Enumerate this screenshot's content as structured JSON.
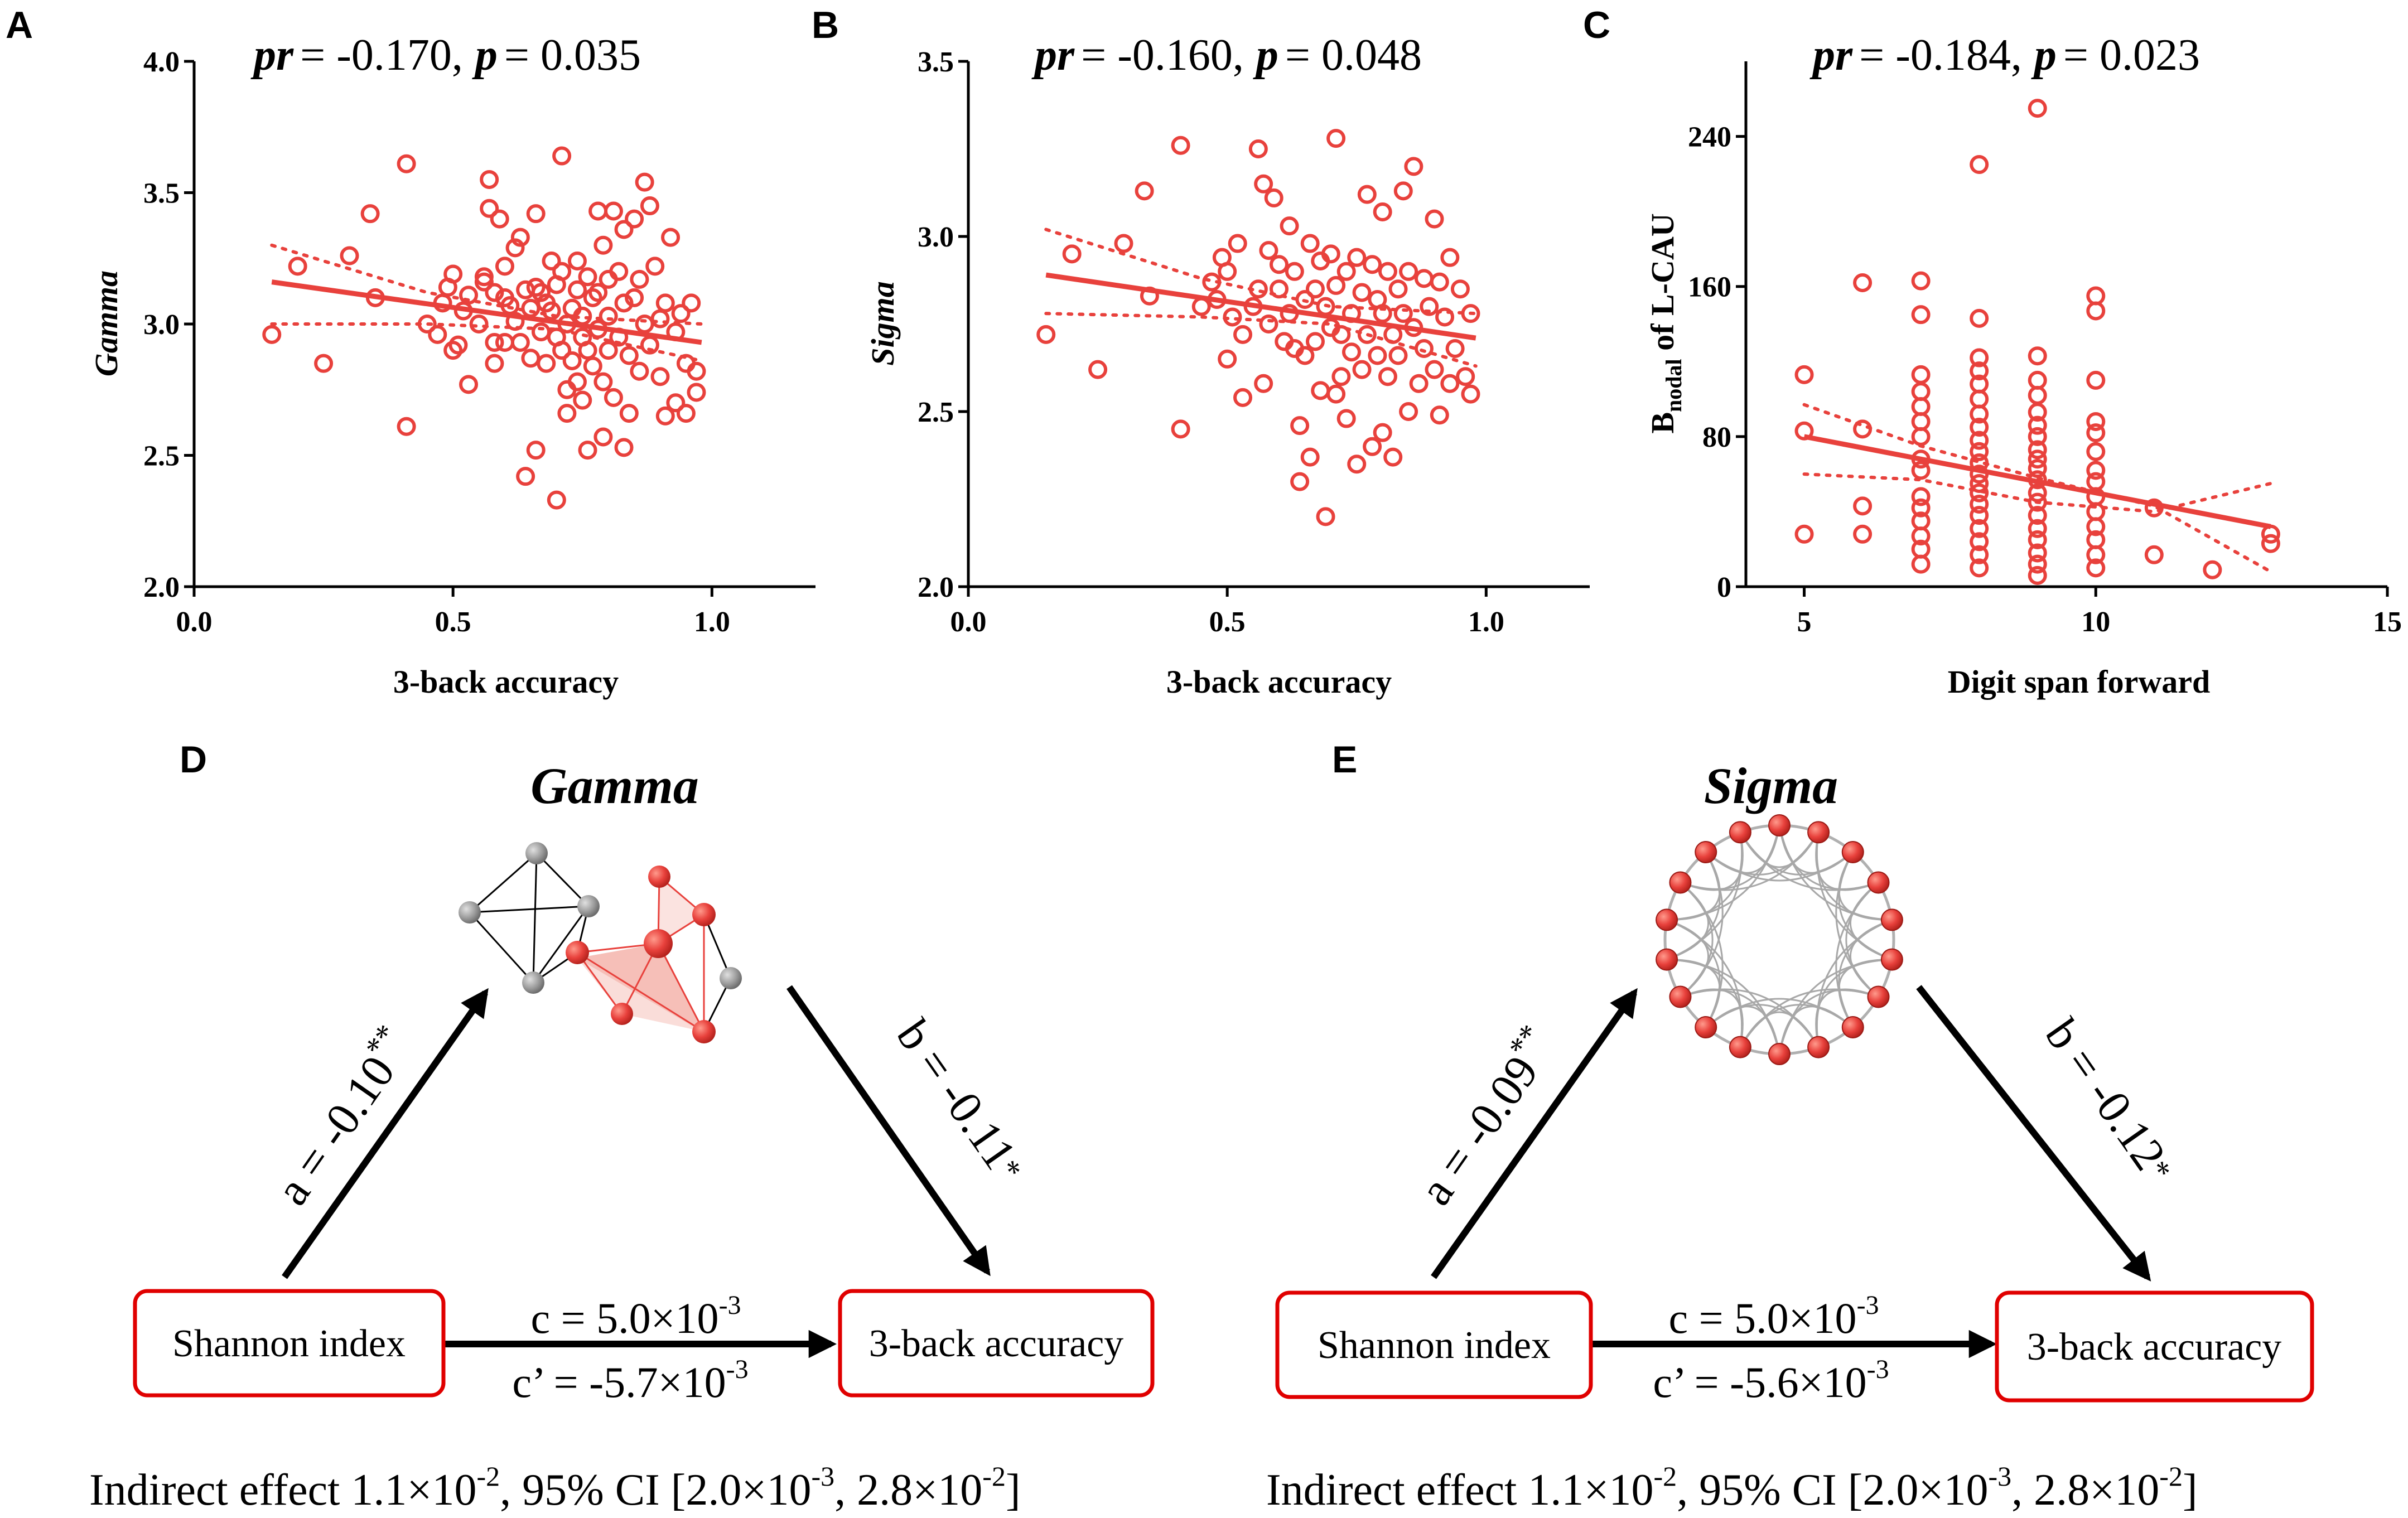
{
  "colors": {
    "accent": "#e8413c",
    "axis": "#000000",
    "box": "#e00000",
    "gray_node": "#9a9a9a"
  },
  "chart_data": [
    {
      "panel": "A",
      "type": "scatter",
      "stat": {
        "pr_label": "pr",
        "pr_value": "= -0.170,",
        "p_label": "p",
        "p_value": "= 0.035"
      },
      "xlabel": "3-back accuracy",
      "ylabel": "Gamma",
      "xlim": [
        0.0,
        1.2
      ],
      "ylim": [
        2.0,
        4.0
      ],
      "xticks": [
        "0.0",
        "0.5",
        "1.0"
      ],
      "xtick_values": [
        0.0,
        0.5,
        1.0
      ],
      "yticks": [
        "2.0",
        "2.5",
        "3.0",
        "3.5",
        "4.0"
      ],
      "ytick_values": [
        2.0,
        2.5,
        3.0,
        3.5,
        4.0
      ],
      "fit": {
        "x": [
          0.15,
          0.98
        ],
        "y": [
          3.16,
          2.93
        ]
      },
      "ci_upper": {
        "x": [
          0.15,
          0.45,
          0.7,
          0.98
        ],
        "y": [
          3.3,
          3.12,
          3.03,
          3.0
        ]
      },
      "ci_lower": {
        "x": [
          0.15,
          0.45,
          0.7,
          0.98
        ],
        "y": [
          3.0,
          3.0,
          2.98,
          2.86
        ]
      },
      "points": [
        [
          0.15,
          2.96
        ],
        [
          0.2,
          3.22
        ],
        [
          0.25,
          2.85
        ],
        [
          0.3,
          3.26
        ],
        [
          0.34,
          3.42
        ],
        [
          0.35,
          3.1
        ],
        [
          0.41,
          3.61
        ],
        [
          0.41,
          2.61
        ],
        [
          0.45,
          3.0
        ],
        [
          0.47,
          2.96
        ],
        [
          0.48,
          3.08
        ],
        [
          0.49,
          3.14
        ],
        [
          0.5,
          3.19
        ],
        [
          0.5,
          2.9
        ],
        [
          0.51,
          2.92
        ],
        [
          0.52,
          3.05
        ],
        [
          0.53,
          3.11
        ],
        [
          0.53,
          2.77
        ],
        [
          0.55,
          3.0
        ],
        [
          0.56,
          3.18
        ],
        [
          0.56,
          3.16
        ],
        [
          0.57,
          3.55
        ],
        [
          0.57,
          3.44
        ],
        [
          0.58,
          3.12
        ],
        [
          0.58,
          2.93
        ],
        [
          0.58,
          2.85
        ],
        [
          0.59,
          3.4
        ],
        [
          0.6,
          3.22
        ],
        [
          0.6,
          3.1
        ],
        [
          0.6,
          2.93
        ],
        [
          0.61,
          3.07
        ],
        [
          0.62,
          3.29
        ],
        [
          0.62,
          3.01
        ],
        [
          0.63,
          3.33
        ],
        [
          0.63,
          2.93
        ],
        [
          0.64,
          3.13
        ],
        [
          0.64,
          2.42
        ],
        [
          0.65,
          3.06
        ],
        [
          0.65,
          2.87
        ],
        [
          0.66,
          3.42
        ],
        [
          0.66,
          3.14
        ],
        [
          0.66,
          2.52
        ],
        [
          0.67,
          3.12
        ],
        [
          0.67,
          2.97
        ],
        [
          0.68,
          3.08
        ],
        [
          0.68,
          2.85
        ],
        [
          0.69,
          3.24
        ],
        [
          0.69,
          3.05
        ],
        [
          0.7,
          3.15
        ],
        [
          0.7,
          2.95
        ],
        [
          0.7,
          2.33
        ],
        [
          0.71,
          3.64
        ],
        [
          0.71,
          3.2
        ],
        [
          0.71,
          2.9
        ],
        [
          0.72,
          3.0
        ],
        [
          0.72,
          2.75
        ],
        [
          0.72,
          2.66
        ],
        [
          0.73,
          3.06
        ],
        [
          0.73,
          2.86
        ],
        [
          0.74,
          3.24
        ],
        [
          0.74,
          3.13
        ],
        [
          0.74,
          2.78
        ],
        [
          0.75,
          3.03
        ],
        [
          0.75,
          2.95
        ],
        [
          0.75,
          2.71
        ],
        [
          0.76,
          3.18
        ],
        [
          0.76,
          2.9
        ],
        [
          0.76,
          2.52
        ],
        [
          0.77,
          3.1
        ],
        [
          0.77,
          2.84
        ],
        [
          0.78,
          3.43
        ],
        [
          0.78,
          3.12
        ],
        [
          0.78,
          2.98
        ],
        [
          0.79,
          3.3
        ],
        [
          0.79,
          2.78
        ],
        [
          0.79,
          2.57
        ],
        [
          0.8,
          3.17
        ],
        [
          0.8,
          3.03
        ],
        [
          0.8,
          2.9
        ],
        [
          0.81,
          3.43
        ],
        [
          0.81,
          2.72
        ],
        [
          0.82,
          3.2
        ],
        [
          0.82,
          2.95
        ],
        [
          0.83,
          3.36
        ],
        [
          0.83,
          3.08
        ],
        [
          0.83,
          2.53
        ],
        [
          0.84,
          2.88
        ],
        [
          0.84,
          2.66
        ],
        [
          0.85,
          3.4
        ],
        [
          0.85,
          3.1
        ],
        [
          0.86,
          3.17
        ],
        [
          0.86,
          2.82
        ],
        [
          0.87,
          3.54
        ],
        [
          0.87,
          3.0
        ],
        [
          0.88,
          3.45
        ],
        [
          0.88,
          2.92
        ],
        [
          0.89,
          3.22
        ],
        [
          0.9,
          3.02
        ],
        [
          0.9,
          2.8
        ],
        [
          0.91,
          3.08
        ],
        [
          0.91,
          2.65
        ],
        [
          0.92,
          3.33
        ],
        [
          0.93,
          2.97
        ],
        [
          0.93,
          2.7
        ],
        [
          0.94,
          3.04
        ],
        [
          0.95,
          2.85
        ],
        [
          0.95,
          2.66
        ],
        [
          0.96,
          3.08
        ],
        [
          0.97,
          2.82
        ],
        [
          0.97,
          2.74
        ]
      ]
    },
    {
      "panel": "B",
      "type": "scatter",
      "stat": {
        "pr_label": "pr",
        "pr_value": "= -0.160,",
        "p_label": "p",
        "p_value": "= 0.048"
      },
      "xlabel": "3-back accuracy",
      "ylabel": "Sigma",
      "xlim": [
        0.0,
        1.2
      ],
      "ylim": [
        2.0,
        3.5
      ],
      "xticks": [
        "0.0",
        "0.5",
        "1.0"
      ],
      "xtick_values": [
        0.0,
        0.5,
        1.0
      ],
      "yticks": [
        "2.0",
        "2.5",
        "3.0",
        "3.5"
      ],
      "ytick_values": [
        2.0,
        2.5,
        3.0,
        3.5
      ],
      "fit": {
        "x": [
          0.15,
          0.98
        ],
        "y": [
          2.89,
          2.71
        ]
      },
      "ci_upper": {
        "x": [
          0.15,
          0.45,
          0.7,
          0.98
        ],
        "y": [
          3.02,
          2.88,
          2.8,
          2.78
        ]
      },
      "ci_lower": {
        "x": [
          0.15,
          0.45,
          0.7,
          0.98
        ],
        "y": [
          2.78,
          2.77,
          2.75,
          2.63
        ]
      },
      "points": [
        [
          0.15,
          2.72
        ],
        [
          0.2,
          2.95
        ],
        [
          0.25,
          2.62
        ],
        [
          0.3,
          2.98
        ],
        [
          0.34,
          3.13
        ],
        [
          0.35,
          2.83
        ],
        [
          0.41,
          3.26
        ],
        [
          0.41,
          2.45
        ],
        [
          0.45,
          2.8
        ],
        [
          0.47,
          2.87
        ],
        [
          0.48,
          2.82
        ],
        [
          0.49,
          2.94
        ],
        [
          0.5,
          2.9
        ],
        [
          0.5,
          2.65
        ],
        [
          0.51,
          2.77
        ],
        [
          0.52,
          2.98
        ],
        [
          0.53,
          2.72
        ],
        [
          0.53,
          2.54
        ],
        [
          0.55,
          2.8
        ],
        [
          0.56,
          3.25
        ],
        [
          0.56,
          2.85
        ],
        [
          0.57,
          3.15
        ],
        [
          0.57,
          2.58
        ],
        [
          0.58,
          2.96
        ],
        [
          0.58,
          2.75
        ],
        [
          0.59,
          3.11
        ],
        [
          0.6,
          2.92
        ],
        [
          0.6,
          2.85
        ],
        [
          0.61,
          2.7
        ],
        [
          0.62,
          3.03
        ],
        [
          0.62,
          2.78
        ],
        [
          0.63,
          2.9
        ],
        [
          0.63,
          2.68
        ],
        [
          0.64,
          2.46
        ],
        [
          0.64,
          2.3
        ],
        [
          0.65,
          2.82
        ],
        [
          0.65,
          2.66
        ],
        [
          0.66,
          2.98
        ],
        [
          0.66,
          2.37
        ],
        [
          0.67,
          2.85
        ],
        [
          0.67,
          2.7
        ],
        [
          0.68,
          2.93
        ],
        [
          0.68,
          2.56
        ],
        [
          0.69,
          2.8
        ],
        [
          0.69,
          2.2
        ],
        [
          0.7,
          2.95
        ],
        [
          0.7,
          2.74
        ],
        [
          0.71,
          3.28
        ],
        [
          0.71,
          2.86
        ],
        [
          0.71,
          2.55
        ],
        [
          0.72,
          2.72
        ],
        [
          0.72,
          2.6
        ],
        [
          0.73,
          2.9
        ],
        [
          0.73,
          2.48
        ],
        [
          0.74,
          2.78
        ],
        [
          0.74,
          2.67
        ],
        [
          0.75,
          2.94
        ],
        [
          0.75,
          2.35
        ],
        [
          0.76,
          2.84
        ],
        [
          0.76,
          2.62
        ],
        [
          0.77,
          3.12
        ],
        [
          0.77,
          2.72
        ],
        [
          0.78,
          2.92
        ],
        [
          0.78,
          2.4
        ],
        [
          0.79,
          2.82
        ],
        [
          0.79,
          2.66
        ],
        [
          0.8,
          3.07
        ],
        [
          0.8,
          2.78
        ],
        [
          0.8,
          2.44
        ],
        [
          0.81,
          2.9
        ],
        [
          0.81,
          2.6
        ],
        [
          0.82,
          2.72
        ],
        [
          0.82,
          2.37
        ],
        [
          0.83,
          2.85
        ],
        [
          0.83,
          2.66
        ],
        [
          0.84,
          3.13
        ],
        [
          0.84,
          2.78
        ],
        [
          0.85,
          2.9
        ],
        [
          0.85,
          2.5
        ],
        [
          0.86,
          3.2
        ],
        [
          0.86,
          2.74
        ],
        [
          0.87,
          2.58
        ],
        [
          0.88,
          2.88
        ],
        [
          0.88,
          2.68
        ],
        [
          0.89,
          2.8
        ],
        [
          0.9,
          3.05
        ],
        [
          0.9,
          2.62
        ],
        [
          0.91,
          2.87
        ],
        [
          0.91,
          2.49
        ],
        [
          0.92,
          2.77
        ],
        [
          0.93,
          2.94
        ],
        [
          0.93,
          2.58
        ],
        [
          0.94,
          2.68
        ],
        [
          0.95,
          2.85
        ],
        [
          0.96,
          2.6
        ],
        [
          0.97,
          2.78
        ],
        [
          0.97,
          2.55
        ]
      ]
    },
    {
      "panel": "C",
      "type": "scatter",
      "stat": {
        "pr_label": "pr",
        "pr_value": "= -0.184,",
        "p_label": "p",
        "p_value": "= 0.023"
      },
      "xlabel": "Digit span forward",
      "ylabel": "Bnodal of L-CAU",
      "ylabel_parts": {
        "main": "B",
        "sub": "nodal",
        "rest": " of L-CAU"
      },
      "xlim": [
        4,
        15
      ],
      "ylim": [
        0,
        280
      ],
      "xticks": [
        "5",
        "10",
        "15"
      ],
      "xtick_values": [
        5,
        10,
        15
      ],
      "yticks": [
        "0",
        "80",
        "160",
        "240"
      ],
      "ytick_values": [
        0,
        80,
        160,
        240
      ],
      "fit": {
        "x": [
          5,
          13
        ],
        "y": [
          80,
          32
        ]
      },
      "ci_upper": {
        "x": [
          5,
          7,
          9,
          11,
          13
        ],
        "y": [
          97,
          75,
          58,
          43,
          8
        ]
      },
      "ci_lower": {
        "x": [
          5,
          7,
          9,
          11,
          13
        ],
        "y": [
          60,
          57,
          45,
          40,
          55
        ]
      },
      "points": [
        [
          5,
          113
        ],
        [
          5,
          83
        ],
        [
          5,
          28
        ],
        [
          6,
          162
        ],
        [
          6,
          84
        ],
        [
          6,
          43
        ],
        [
          6,
          28
        ],
        [
          7,
          163
        ],
        [
          7,
          145
        ],
        [
          7,
          113
        ],
        [
          7,
          104
        ],
        [
          7,
          96
        ],
        [
          7,
          88
        ],
        [
          7,
          80
        ],
        [
          7,
          68
        ],
        [
          7,
          62
        ],
        [
          7,
          48
        ],
        [
          7,
          42
        ],
        [
          7,
          35
        ],
        [
          7,
          27
        ],
        [
          7,
          20
        ],
        [
          7,
          12
        ],
        [
          8,
          225
        ],
        [
          8,
          143
        ],
        [
          8,
          122
        ],
        [
          8,
          115
        ],
        [
          8,
          108
        ],
        [
          8,
          100
        ],
        [
          8,
          92
        ],
        [
          8,
          85
        ],
        [
          8,
          78
        ],
        [
          8,
          72
        ],
        [
          8,
          66
        ],
        [
          8,
          60
        ],
        [
          8,
          55
        ],
        [
          8,
          50
        ],
        [
          8,
          44
        ],
        [
          8,
          38
        ],
        [
          8,
          31
        ],
        [
          8,
          24
        ],
        [
          8,
          17
        ],
        [
          8,
          10
        ],
        [
          9,
          255
        ],
        [
          9,
          123
        ],
        [
          9,
          110
        ],
        [
          9,
          102
        ],
        [
          9,
          93
        ],
        [
          9,
          86
        ],
        [
          9,
          80
        ],
        [
          9,
          73
        ],
        [
          9,
          68
        ],
        [
          9,
          63
        ],
        [
          9,
          57
        ],
        [
          9,
          50
        ],
        [
          9,
          45
        ],
        [
          9,
          38
        ],
        [
          9,
          31
        ],
        [
          9,
          25
        ],
        [
          9,
          18
        ],
        [
          9,
          12
        ],
        [
          9,
          6
        ],
        [
          10,
          155
        ],
        [
          10,
          147
        ],
        [
          10,
          110
        ],
        [
          10,
          88
        ],
        [
          10,
          82
        ],
        [
          10,
          72
        ],
        [
          10,
          62
        ],
        [
          10,
          56
        ],
        [
          10,
          48
        ],
        [
          10,
          40
        ],
        [
          10,
          32
        ],
        [
          10,
          25
        ],
        [
          10,
          17
        ],
        [
          10,
          10
        ],
        [
          11,
          42
        ],
        [
          11,
          17
        ],
        [
          12,
          9
        ],
        [
          13,
          28
        ],
        [
          13,
          23
        ]
      ]
    }
  ],
  "panel_d": {
    "letter": "D",
    "title": "Gamma",
    "a_label": "a = -0.10",
    "a_sig": "**",
    "b_label": "b = -0.11",
    "b_sig": "*",
    "box_left": "Shannon index",
    "box_right": "3-back accuracy",
    "c_label": "c = 5.0×10",
    "c_exp": "-3",
    "cp_label": "c’  = -5.7×10",
    "cp_exp": "-3",
    "indirect": {
      "p1": "Indirect effect 1.1×10",
      "e1": "-2",
      "p2": ", 95% CI [2.0×10",
      "e2": "-3",
      "p3": ", 2.8×10",
      "e3": "-2",
      "p4": "]"
    }
  },
  "panel_e": {
    "letter": "E",
    "title": "Sigma",
    "a_label": "a = -0.09",
    "a_sig": "**",
    "b_label": "b = -0.12",
    "b_sig": "*",
    "box_left": "Shannon index",
    "box_right": "3-back accuracy",
    "c_label": "c = 5.0×10",
    "c_exp": "-3",
    "cp_label": "c’  = -5.6×10",
    "cp_exp": "-3",
    "indirect": {
      "p1": "Indirect effect 1.1×10",
      "e1": "-2",
      "p2": ", 95% CI [2.0×10",
      "e2": "-3",
      "p3": ", 2.8×10",
      "e3": "-2",
      "p4": "]"
    }
  }
}
